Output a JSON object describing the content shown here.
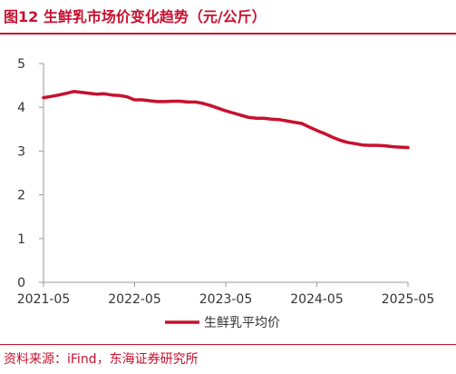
{
  "header": {
    "title": "图12  生鲜乳市场价变化趋势（元/公斤）"
  },
  "footer": {
    "source": "资料来源：iFind，东海证券研究所"
  },
  "colors": {
    "accent": "#c8102e",
    "line": "#c8102e",
    "axis": "#999999"
  },
  "chart_data": {
    "type": "line",
    "title": "",
    "xlabel": "",
    "ylabel": "",
    "ylim": [
      0,
      5
    ],
    "yticks": [
      0,
      1,
      2,
      3,
      4,
      5
    ],
    "xticks": [
      "2021-05",
      "2022-05",
      "2023-05",
      "2024-05",
      "2025-05"
    ],
    "xlim": [
      "2021-05",
      "2025-05"
    ],
    "grid": false,
    "legend": "bottom",
    "series": [
      {
        "name": "生鲜乳平均价",
        "points": [
          [
            "2021-05",
            4.22
          ],
          [
            "2021-06",
            4.25
          ],
          [
            "2021-07",
            4.28
          ],
          [
            "2021-08",
            4.32
          ],
          [
            "2021-09",
            4.36
          ],
          [
            "2021-10",
            4.34
          ],
          [
            "2021-11",
            4.32
          ],
          [
            "2021-12",
            4.3
          ],
          [
            "2022-01",
            4.31
          ],
          [
            "2022-02",
            4.28
          ],
          [
            "2022-03",
            4.27
          ],
          [
            "2022-04",
            4.24
          ],
          [
            "2022-05",
            4.17
          ],
          [
            "2022-06",
            4.17
          ],
          [
            "2022-07",
            4.15
          ],
          [
            "2022-08",
            4.13
          ],
          [
            "2022-09",
            4.13
          ],
          [
            "2022-10",
            4.14
          ],
          [
            "2022-11",
            4.14
          ],
          [
            "2022-12",
            4.12
          ],
          [
            "2023-01",
            4.12
          ],
          [
            "2023-02",
            4.09
          ],
          [
            "2023-03",
            4.04
          ],
          [
            "2023-04",
            3.98
          ],
          [
            "2023-05",
            3.92
          ],
          [
            "2023-06",
            3.87
          ],
          [
            "2023-07",
            3.82
          ],
          [
            "2023-08",
            3.77
          ],
          [
            "2023-09",
            3.75
          ],
          [
            "2023-10",
            3.75
          ],
          [
            "2023-11",
            3.73
          ],
          [
            "2023-12",
            3.72
          ],
          [
            "2024-01",
            3.69
          ],
          [
            "2024-02",
            3.66
          ],
          [
            "2024-03",
            3.63
          ],
          [
            "2024-04",
            3.55
          ],
          [
            "2024-05",
            3.47
          ],
          [
            "2024-06",
            3.4
          ],
          [
            "2024-07",
            3.32
          ],
          [
            "2024-08",
            3.25
          ],
          [
            "2024-09",
            3.2
          ],
          [
            "2024-10",
            3.17
          ],
          [
            "2024-11",
            3.14
          ],
          [
            "2024-12",
            3.13
          ],
          [
            "2025-01",
            3.13
          ],
          [
            "2025-02",
            3.12
          ],
          [
            "2025-03",
            3.1
          ],
          [
            "2025-04",
            3.09
          ],
          [
            "2025-05",
            3.08
          ]
        ]
      }
    ]
  }
}
